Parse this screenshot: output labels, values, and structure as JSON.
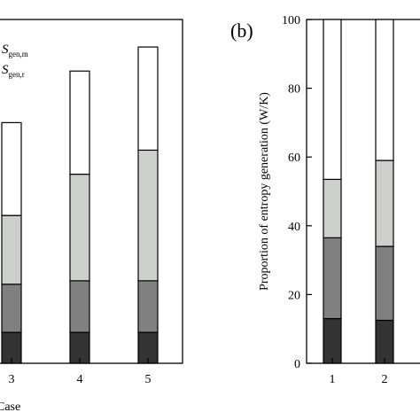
{
  "chart_data": [
    {
      "type": "bar",
      "stacked": true,
      "panel_label": "",
      "categories": [
        "3",
        "4",
        "5"
      ],
      "category_label_fragment": "3",
      "xlabel": "Case",
      "ylabel": "",
      "legend": [
        {
          "label_main": "S",
          "label_sub": "gen,m"
        },
        {
          "label_main": "S",
          "label_sub": "gen,r"
        }
      ],
      "ylim": [
        0,
        100
      ],
      "series": [
        {
          "values": [
            9,
            9,
            9
          ],
          "color": "#333333"
        },
        {
          "values": [
            14,
            15,
            15
          ],
          "color": "#808080"
        },
        {
          "values": [
            20,
            31,
            38
          ],
          "color": "#cdcfcd"
        },
        {
          "values": [
            27,
            30,
            30
          ],
          "color": "#ffffff"
        }
      ]
    },
    {
      "type": "bar",
      "stacked": true,
      "panel_label": "(b)",
      "categories": [
        "1",
        "2"
      ],
      "ylabel": "Proportion of entropy generation (W/K)",
      "yticks": [
        "0",
        "20",
        "40",
        "60",
        "80",
        "100"
      ],
      "ylim": [
        0,
        100
      ],
      "series": [
        {
          "values": [
            13,
            12.5
          ],
          "color": "#333333"
        },
        {
          "values": [
            23.5,
            21.5
          ],
          "color": "#808080"
        },
        {
          "values": [
            17,
            25
          ],
          "color": "#cdcfcd"
        },
        {
          "values": [
            46.5,
            41
          ],
          "color": "#ffffff"
        }
      ]
    }
  ],
  "left_panel": {
    "tick_labels": [
      "3",
      "4",
      "5"
    ],
    "xlabel": "Case"
  },
  "right_panel": {
    "panel_label": "(b)",
    "ylabel": "Proportion of entropy generation (W/K)",
    "yticks": [
      "0",
      "20",
      "40",
      "60",
      "80",
      "100"
    ],
    "xticks": [
      "1",
      "2"
    ]
  }
}
